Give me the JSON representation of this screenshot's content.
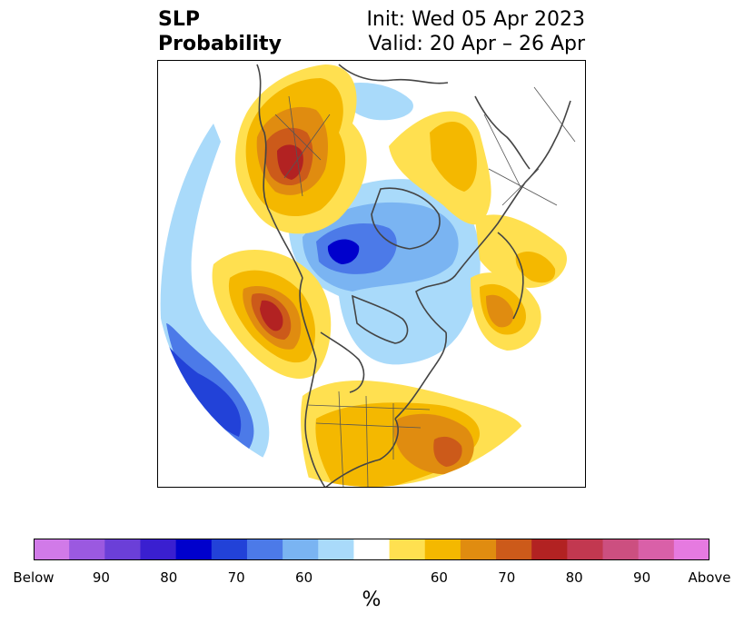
{
  "title": {
    "left_line1": "SLP",
    "left_line2": "Probability",
    "right_line1": "Init: Wed 05 Apr 2023",
    "right_line2": "Valid: 20 Apr – 26 Apr"
  },
  "colorbar": {
    "label": "%",
    "colors": [
      "#d17ae8",
      "#9b59e0",
      "#6b3fd8",
      "#3a1fd0",
      "#0000cc",
      "#2242d8",
      "#4c7ae8",
      "#7ab4f2",
      "#a9dafa",
      "#ffffff",
      "#ffe050",
      "#f4b800",
      "#e08c10",
      "#cc5a1a",
      "#b22222",
      "#c23850",
      "#cc4f80",
      "#d960a8",
      "#e67ae0"
    ],
    "ticks": [
      {
        "label": "Below",
        "frac": 0.0
      },
      {
        "label": "90",
        "frac": 0.1
      },
      {
        "label": "80",
        "frac": 0.2
      },
      {
        "label": "70",
        "frac": 0.3
      },
      {
        "label": "60",
        "frac": 0.4
      },
      {
        "label": "60",
        "frac": 0.6
      },
      {
        "label": "70",
        "frac": 0.7
      },
      {
        "label": "80",
        "frac": 0.8
      },
      {
        "label": "90",
        "frac": 0.9
      },
      {
        "label": "Above",
        "frac": 1.0
      }
    ]
  },
  "map": {
    "colors": {
      "yellow": "#ffe050",
      "gold": "#f4b800",
      "orange": "#e08c10",
      "burnt": "#cc5a1a",
      "red": "#b22222",
      "lightblue": "#a9dafa",
      "skyblue": "#7ab4f2",
      "blue": "#4c7ae8",
      "royal": "#2242d8",
      "deep": "#0000cc",
      "coast": "#444444"
    }
  }
}
